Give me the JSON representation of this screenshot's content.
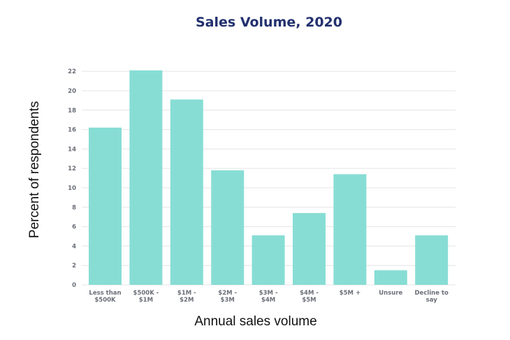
{
  "chart_data": {
    "type": "bar",
    "title": "Sales Volume, 2020",
    "xlabel": "Annual sales volume",
    "ylabel": "Percent of respondents",
    "categories": [
      [
        "Less than",
        "$500K"
      ],
      [
        "$500K -",
        "$1M"
      ],
      [
        "$1M -",
        "$2M"
      ],
      [
        "$2M -",
        "$3M"
      ],
      [
        "$3M -",
        "$4M"
      ],
      [
        "$4M -",
        "$5M"
      ],
      [
        "$5M +"
      ],
      [
        "Unsure"
      ],
      [
        "Decline to",
        "say"
      ]
    ],
    "values": [
      16.2,
      22.1,
      19.1,
      11.8,
      5.1,
      7.4,
      11.4,
      1.5,
      5.1
    ],
    "yticks": [
      0,
      2,
      4,
      6,
      8,
      10,
      12,
      14,
      16,
      18,
      20,
      22
    ],
    "ylim": [
      0,
      22.3
    ],
    "grid": true,
    "legend": "none",
    "colors": {
      "bar": "#87ddd4",
      "title": "#22306e"
    }
  }
}
